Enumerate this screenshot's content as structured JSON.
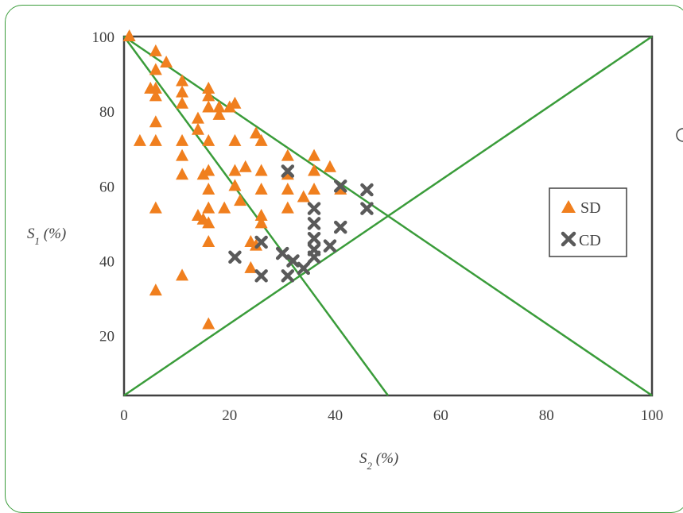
{
  "chart_data": {
    "type": "scatter",
    "xlabel": "S2 (%)",
    "ylabel": "S1 (%)",
    "xlabel_main": "S",
    "xlabel_sub": "2",
    "xlabel_tail": " (%)",
    "ylabel_main": "S",
    "ylabel_sub": "1",
    "ylabel_tail": " (%)",
    "xlim": [
      0,
      100
    ],
    "ylim": [
      4,
      100
    ],
    "x_ticks": [
      "0",
      "20",
      "40",
      "60",
      "80",
      "100"
    ],
    "y_ticks": [
      "20",
      "40",
      "60",
      "80",
      "100"
    ],
    "x_tick_values": [
      0,
      20,
      40,
      60,
      80,
      100
    ],
    "y_tick_values": [
      20,
      40,
      60,
      80,
      100
    ],
    "grid": false,
    "legend_position": "right",
    "reference_lines": [
      {
        "from": [
          0,
          100
        ],
        "to": [
          100,
          4
        ],
        "color": "#3a9c3a"
      },
      {
        "from": [
          0,
          100
        ],
        "to": [
          50,
          4
        ],
        "color": "#3a9c3a"
      },
      {
        "from": [
          0,
          4
        ],
        "to": [
          100,
          100
        ],
        "color": "#3a9c3a"
      }
    ],
    "series": [
      {
        "name": "SD",
        "marker": "triangle",
        "color": "#f07f1e",
        "points": [
          [
            1,
            100
          ],
          [
            6,
            96
          ],
          [
            6,
            91
          ],
          [
            8,
            93
          ],
          [
            5,
            86
          ],
          [
            6,
            86
          ],
          [
            6,
            84
          ],
          [
            11,
            88
          ],
          [
            11,
            85
          ],
          [
            11,
            82
          ],
          [
            6,
            77
          ],
          [
            3,
            72
          ],
          [
            6,
            72
          ],
          [
            11,
            72
          ],
          [
            11,
            68
          ],
          [
            11,
            63
          ],
          [
            6,
            54
          ],
          [
            6,
            32
          ],
          [
            11,
            36
          ],
          [
            14,
            78
          ],
          [
            14,
            75
          ],
          [
            16,
            86
          ],
          [
            16,
            84
          ],
          [
            16,
            81
          ],
          [
            18,
            81
          ],
          [
            18,
            79
          ],
          [
            20,
            81
          ],
          [
            21,
            82
          ],
          [
            16,
            72
          ],
          [
            15,
            63
          ],
          [
            16,
            64
          ],
          [
            16,
            59
          ],
          [
            16,
            54
          ],
          [
            19,
            54
          ],
          [
            14,
            52
          ],
          [
            15,
            51
          ],
          [
            16,
            50
          ],
          [
            16,
            45
          ],
          [
            16,
            23
          ],
          [
            21,
            72
          ],
          [
            21,
            64
          ],
          [
            21,
            60
          ],
          [
            22,
            56
          ],
          [
            23,
            65
          ],
          [
            25,
            74
          ],
          [
            26,
            72
          ],
          [
            26,
            64
          ],
          [
            26,
            59
          ],
          [
            26,
            52
          ],
          [
            26,
            50
          ],
          [
            24,
            45
          ],
          [
            25,
            44
          ],
          [
            24,
            38
          ],
          [
            31,
            68
          ],
          [
            31,
            63
          ],
          [
            31,
            59
          ],
          [
            31,
            54
          ],
          [
            34,
            57
          ],
          [
            36,
            68
          ],
          [
            36,
            64
          ],
          [
            36,
            59
          ],
          [
            39,
            65
          ],
          [
            41,
            59
          ]
        ]
      },
      {
        "name": "CD",
        "marker": "cross",
        "color": "#5a5a5a",
        "points": [
          [
            21,
            41
          ],
          [
            26,
            45
          ],
          [
            26,
            36
          ],
          [
            30,
            42
          ],
          [
            31,
            64
          ],
          [
            31,
            36
          ],
          [
            32,
            40
          ],
          [
            34,
            38
          ],
          [
            36,
            54
          ],
          [
            36,
            50
          ],
          [
            36,
            46
          ],
          [
            36,
            43
          ],
          [
            36,
            41
          ],
          [
            39,
            44
          ],
          [
            41,
            60
          ],
          [
            41,
            49
          ],
          [
            46,
            59
          ],
          [
            46,
            54
          ]
        ]
      }
    ],
    "legend": [
      "SD",
      "CD"
    ]
  }
}
